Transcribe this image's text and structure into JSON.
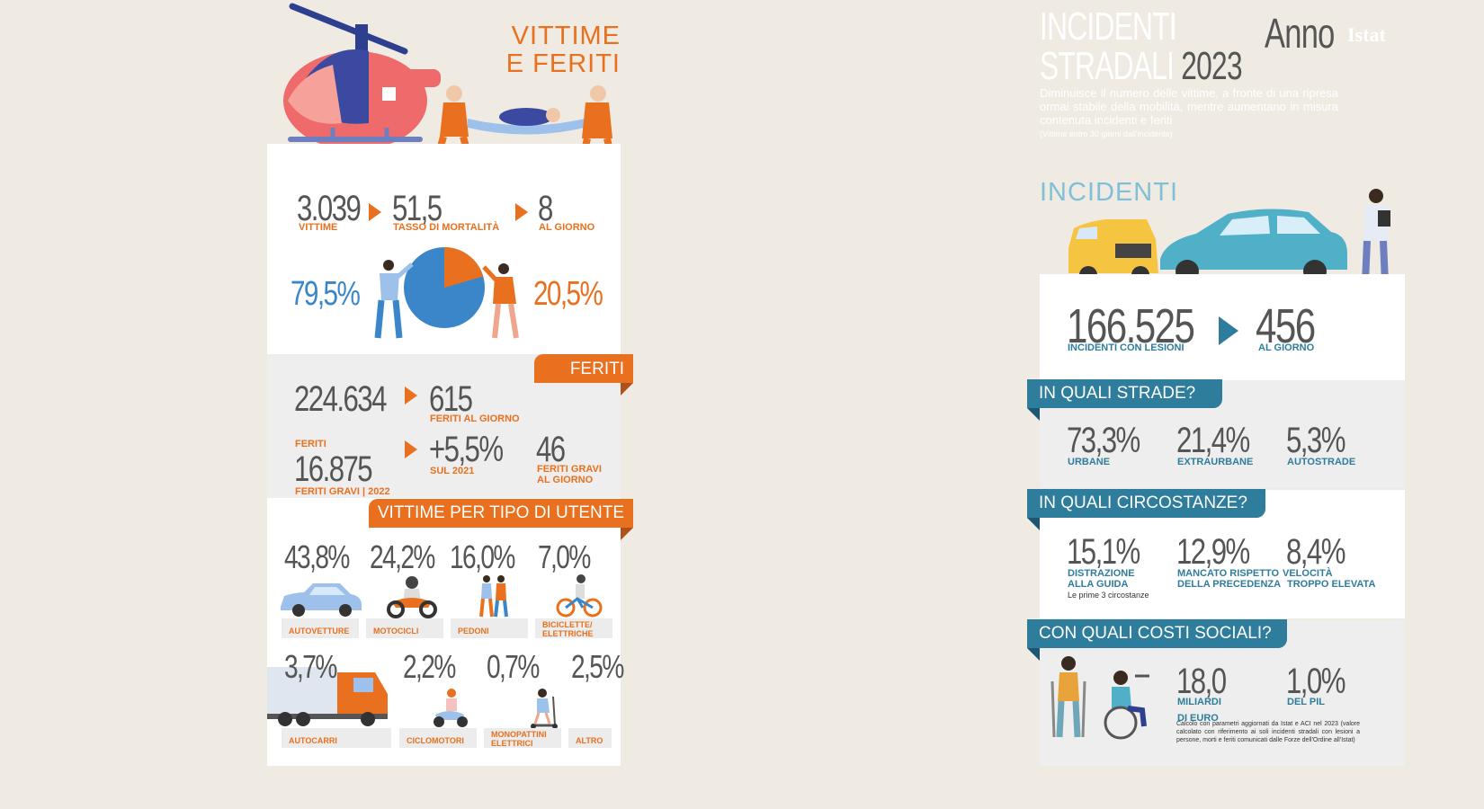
{
  "left": {
    "title_line1": "VITTIME",
    "title_line2": "E FERITI",
    "victims": {
      "value": "3.039",
      "label": "VITTIME"
    },
    "mortality": {
      "value": "51,5",
      "label": "TASSO DI MORTALITÀ"
    },
    "per_day": {
      "value": "8",
      "label": "AL GIORNO"
    },
    "male_pct": "79,5%",
    "female_pct": "20,5%",
    "feriti_ribbon": "FERITI",
    "injured": {
      "value": "224.634"
    },
    "injured_per_day": {
      "value": "615",
      "label": "FERITI AL GIORNO"
    },
    "serious": {
      "pre_label": "FERITI",
      "value": "16.875",
      "label": "FERITI GRAVI | 2022"
    },
    "serious_change": {
      "value": "+5,5%",
      "label": "SUL 2021"
    },
    "serious_per_day": {
      "value": "46",
      "label1": "FERITI GRAVI",
      "label2": "AL GIORNO"
    },
    "user_ribbon": "VITTIME PER TIPO DI UTENTE",
    "users": [
      {
        "pct": "43,8%",
        "label": "AUTOVETTURE"
      },
      {
        "pct": "24,2%",
        "label": "MOTOCICLI"
      },
      {
        "pct": "16,0%",
        "label": "PEDONI"
      },
      {
        "pct": "7,0%",
        "label1": "BICICLETTE/",
        "label2": "ELETTRICHE"
      },
      {
        "pct": "3,7%",
        "label": "AUTOCARRI"
      },
      {
        "pct": "2,2%",
        "label": "CICLOMOTORI"
      },
      {
        "pct": "0,7%",
        "label1": "MONOPATTINI",
        "label2": "ELETTRICI"
      },
      {
        "pct": "2,5%",
        "label": "ALTRO"
      }
    ],
    "pie": {
      "male": 79.5,
      "female": 20.5
    }
  },
  "right": {
    "title_line1": "INCIDENTI",
    "title_line2": "STRADALI",
    "year": "2023",
    "anno": "Anno",
    "logo": "Istat",
    "subtitle": "Diminuisce il numero delle vittime, a fronte di una ripresa ormai stabile della mobilità, mentre aumentano in misura contenuta incidenti e feriti",
    "note": "(Vittime entro 30 giorni dall'incidente)",
    "section": "INCIDENTI",
    "accidents": {
      "value": "166.525",
      "label": "INCIDENTI CON LESIONI"
    },
    "accidents_day": {
      "value": "456",
      "label": "AL GIORNO"
    },
    "roads": {
      "title": "IN QUALI STRADE?",
      "items": [
        {
          "pct": "73,3%",
          "label": "URBANE"
        },
        {
          "pct": "21,4%",
          "label": "EXTRAURBANE"
        },
        {
          "pct": "5,3%",
          "label": "AUTOSTRADE"
        }
      ]
    },
    "circumstances": {
      "title": "IN QUALI CIRCOSTANZE?",
      "items": [
        {
          "pct": "15,1%",
          "label1": "DISTRAZIONE",
          "label2": "ALLA GUIDA"
        },
        {
          "pct": "12,9%",
          "label1": "MANCATO RISPETTO",
          "label2": "DELLA PRECEDENZA"
        },
        {
          "pct": "8,4%",
          "label1": "VELOCITÀ",
          "label2": "TROPPO ELEVATA"
        }
      ],
      "note": "Le prime 3 circostanze"
    },
    "costs": {
      "title": "CON QUALI COSTI SOCIALI?",
      "value1": "18,0",
      "label1a": "MILIARDI",
      "label1b": "DI EURO",
      "value2": "1,0%",
      "label2": "DEL PIL",
      "note": "Calcolo con parametri aggiornati da Istat e ACI nel 2023 (valore calcolato con riferimento ai soli incidenti stradali con lesioni a persone, morti e feriti comunicati dalle Forze dell'Ordine all'Istat)"
    }
  },
  "colors": {
    "orange": "#e8701e",
    "blue": "#3b86c8",
    "teal": "#2e7d9c",
    "grey": "#555555"
  }
}
